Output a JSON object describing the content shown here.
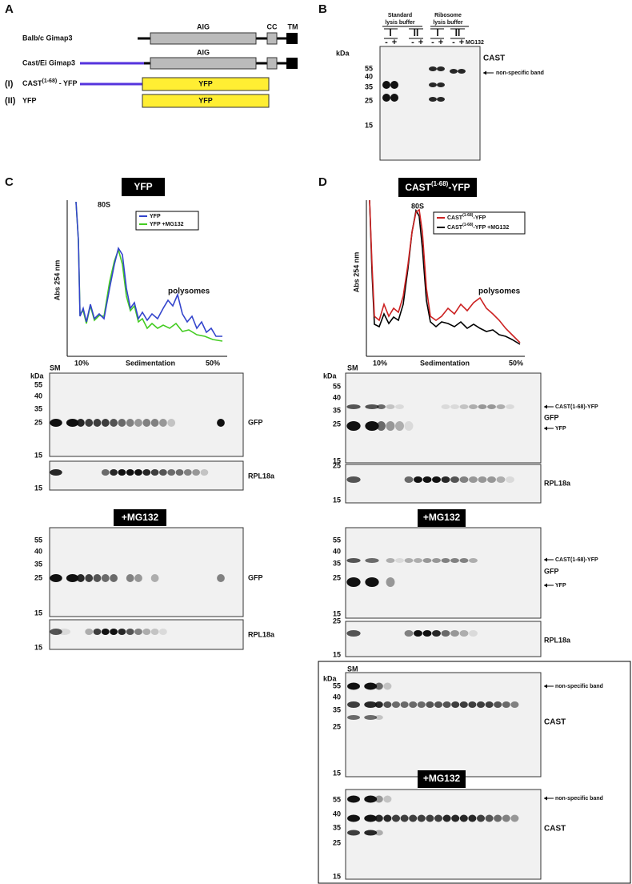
{
  "panel_a": {
    "label": "A",
    "rows": [
      {
        "name": "Balb/c  Gimap3",
        "domains": [
          "AIG",
          "CC",
          "TM"
        ]
      },
      {
        "name": "Cast/Ei  Gimap3",
        "domains": [
          "AIG"
        ]
      },
      {
        "roman": "(I)",
        "name": "CAST",
        "superscript": "(1-68)",
        "suffix": " - YFP",
        "box": "YFP"
      },
      {
        "roman": "(II)",
        "name": "YFP",
        "box": "YFP"
      }
    ]
  },
  "panel_b": {
    "label": "B",
    "buffers": [
      [
        "Standard",
        "lysis buffer"
      ],
      [
        "Ribosome",
        "lysis buffer"
      ]
    ],
    "constructs": [
      "I",
      "II",
      "I",
      "II"
    ],
    "treatments": [
      "-",
      "+",
      "-",
      "+",
      "-",
      "+",
      "-",
      "+"
    ],
    "treatment": "MG132",
    "unit": "kDa",
    "markers": [
      "55",
      "40",
      "35",
      "25",
      "15"
    ],
    "protein": "CAST",
    "annotation": "non-specific band"
  },
  "panel_c": {
    "label": "C",
    "title": "YFP",
    "peak": "80S",
    "legend": [
      "YFP",
      "YFP +MG132"
    ],
    "y_label": "Abs 254 nm",
    "region": "polysomes",
    "x_labels": [
      "10%",
      "Sedimentation",
      "50%"
    ],
    "lane": "SM",
    "unit": "kDa",
    "blots": [
      {
        "markers": [
          "55",
          "40",
          "35",
          "25",
          "15"
        ],
        "protein": "GFP"
      },
      {
        "markers": [
          "15"
        ],
        "protein": "RPL18a"
      },
      {
        "header": "+MG132",
        "markers": [
          "55",
          "40",
          "35",
          "25",
          "15"
        ],
        "protein": "GFP"
      },
      {
        "markers": [
          "15"
        ],
        "protein": "RPL18a"
      }
    ]
  },
  "panel_d": {
    "label": "D",
    "title": {
      "name": "CAST",
      "superscript": "(1-68)",
      "suffix": "-YFP"
    },
    "peak": "80S",
    "legend": [
      {
        "name": "CAST",
        "superscript": "(1-68)",
        "suffix": "-YFP"
      },
      {
        "name": "CAST",
        "superscript": "(1-68)",
        "suffix": "-YFP +MG132"
      }
    ],
    "y_label": "Abs 254 nm",
    "region": "polysomes",
    "x_labels": [
      "10%",
      "Sedimentation",
      "50%"
    ],
    "lane": "SM",
    "unit": "kDa",
    "blots": [
      {
        "markers": [
          "55",
          "40",
          "35",
          "25",
          "15"
        ],
        "protein": "GFP",
        "arrows": [
          "CAST(1-68)-YFP",
          "YFP"
        ]
      },
      {
        "markers": [
          "25",
          "15"
        ],
        "protein": "RPL18a"
      },
      {
        "header": "+MG132",
        "markers": [
          "55",
          "40",
          "35",
          "25",
          "15"
        ],
        "protein": "GFP",
        "arrows": [
          "CAST(1-68)-YFP",
          "YFP"
        ]
      },
      {
        "markers": [
          "25",
          "15"
        ],
        "protein": "RPL18a"
      }
    ],
    "cast_blots": {
      "lane": "SM",
      "unit": "kDa",
      "blots": [
        {
          "markers": [
            "55",
            "40",
            "35",
            "25",
            "15"
          ],
          "annotation": "non-specific band",
          "protein": "CAST"
        },
        {
          "header": "+MG132",
          "markers": [
            "55",
            "40",
            "35",
            "25",
            "15"
          ],
          "annotation": "non-specific band",
          "protein": "CAST"
        }
      ]
    }
  }
}
